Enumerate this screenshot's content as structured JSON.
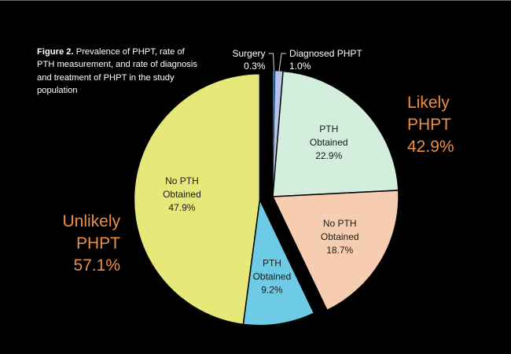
{
  "caption": {
    "prefix": "Figure 2.",
    "text": " Prevalence of PHPT, rate of PTH measurement, and rate of diagnosis and treatment of PHPT in the study population"
  },
  "colors": {
    "background": "#000000",
    "group_label": "#e8904a"
  },
  "chart_data": {
    "type": "pie",
    "title": "Figure 2. Prevalence of PHPT, rate of PTH measurement, and rate of diagnosis and treatment of PHPT in the study population",
    "exploded_group": "Unlikely PHPT",
    "groups": [
      {
        "name": "Likely",
        "name2": "PHPT",
        "value": "42.9%",
        "numeric": 42.9
      },
      {
        "name": "Unlikely",
        "name2": "PHPT",
        "value": "57.1%",
        "numeric": 57.1
      }
    ],
    "slices": [
      {
        "group": "Likely PHPT",
        "label": [
          "Surgery"
        ],
        "value": "0.3%",
        "numeric": 0.3,
        "color": "#2e7fc6",
        "callout": true
      },
      {
        "group": "Likely PHPT",
        "label": [
          "Diagnosed PHPT"
        ],
        "value": "1.0%",
        "numeric": 1.0,
        "color": "#b7c0ea",
        "callout": true
      },
      {
        "group": "Likely PHPT",
        "label": [
          "PTH",
          "Obtained"
        ],
        "value": "22.9%",
        "numeric": 22.9,
        "color": "#d3eedd",
        "callout": false
      },
      {
        "group": "Likely PHPT",
        "label": [
          "No PTH",
          "Obtained"
        ],
        "value": "18.7%",
        "numeric": 18.7,
        "color": "#f6cdb1",
        "callout": false
      },
      {
        "group": "Unlikely PHPT",
        "label": [
          "PTH",
          "Obtained"
        ],
        "value": "9.2%",
        "numeric": 9.2,
        "color": "#6ecbe6",
        "callout": false
      },
      {
        "group": "Unlikely PHPT",
        "label": [
          "No PTH",
          "Obtained"
        ],
        "value": "47.9%",
        "numeric": 47.9,
        "color": "#e6e87a",
        "callout": false
      }
    ]
  }
}
